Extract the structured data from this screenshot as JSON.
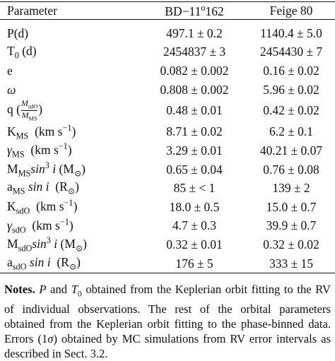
{
  "table": {
    "header": [
      [
        {
          "t": "Parameter"
        }
      ],
      [
        {
          "t": "BD−11"
        },
        {
          "t": "o",
          "s": "sup"
        },
        {
          "t": "162"
        }
      ],
      [
        {
          "t": "Feige 80"
        }
      ]
    ],
    "rows": [
      {
        "parameter": [
          {
            "t": "P(d)"
          }
        ],
        "bd": "497.1 ± 0.2",
        "feige": "1140.4 ± 5.0"
      },
      {
        "parameter": [
          {
            "t": "T"
          },
          {
            "t": "0",
            "s": "sub"
          },
          {
            "t": " (d)"
          }
        ],
        "bd": "2454837 ± 3",
        "feige": "2454430 ± 7"
      },
      {
        "parameter": [
          {
            "t": "e"
          }
        ],
        "bd": "0.082 ± 0.002",
        "feige": "0.16 ± 0.02"
      },
      {
        "parameter": [
          {
            "t": "ω",
            "s": "i"
          }
        ],
        "bd": "0.808 ± 0.002",
        "feige": "5.96 ± 0.02"
      },
      {
        "parameter": [
          {
            "t": "q ("
          },
          {
            "s": "frac",
            "num": [
              {
                "t": "M",
                "s": "i"
              },
              {
                "t": "sdO",
                "s": "sub"
              }
            ],
            "den": [
              {
                "t": "M",
                "s": "i"
              },
              {
                "t": "MS",
                "s": "sub"
              }
            ]
          },
          {
            "t": ")"
          }
        ],
        "bd": "0.48 ± 0.01",
        "feige": "0.42 ± 0.02"
      },
      {
        "parameter": [
          {
            "t": "K"
          },
          {
            "t": "MS",
            "s": "sub"
          },
          {
            "t": "  (km s"
          },
          {
            "t": "−1",
            "s": "sup"
          },
          {
            "t": ")"
          }
        ],
        "bd": "8.71 ± 0.02",
        "feige": "6.2 ± 0.1"
      },
      {
        "parameter": [
          {
            "t": "γ",
            "s": "i"
          },
          {
            "t": "MS",
            "s": "sub"
          },
          {
            "t": "  (km s"
          },
          {
            "t": "−1",
            "s": "sup"
          },
          {
            "t": ")"
          }
        ],
        "bd": "3.29 ± 0.01",
        "feige": "40.21 ± 0.07"
      },
      {
        "parameter": [
          {
            "t": "M"
          },
          {
            "t": "MS",
            "s": "sub"
          },
          {
            "t": "sin",
            "s": "i"
          },
          {
            "t": "3",
            "s": "sup"
          },
          {
            "t": " "
          },
          {
            "t": "i",
            "s": "i"
          },
          {
            "t": " (M"
          },
          {
            "t": "⊙",
            "s": "sub"
          },
          {
            "t": ")"
          }
        ],
        "bd": "0.65 ± 0.04",
        "feige": "0.76 ± 0.08"
      },
      {
        "parameter": [
          {
            "t": "a"
          },
          {
            "t": "MS",
            "s": "sub"
          },
          {
            "t": " "
          },
          {
            "t": "sin i",
            "s": "i"
          },
          {
            "t": "  (R"
          },
          {
            "t": "⊙",
            "s": "sub"
          },
          {
            "t": ")"
          }
        ],
        "bd": "85 ± < 1",
        "feige": "139 ± 2"
      },
      {
        "parameter": [
          {
            "t": "K"
          },
          {
            "t": "sdO",
            "s": "sub"
          },
          {
            "t": "  (km s"
          },
          {
            "t": "−1",
            "s": "sup"
          },
          {
            "t": ")"
          }
        ],
        "bd": "18.0 ± 0.5",
        "feige": "15.0 ± 0.7"
      },
      {
        "parameter": [
          {
            "t": "γ",
            "s": "i"
          },
          {
            "t": "sdO",
            "s": "sub"
          },
          {
            "t": "  (km s"
          },
          {
            "t": "−1",
            "s": "sup"
          },
          {
            "t": ")"
          }
        ],
        "bd": "4.7 ± 0.3",
        "feige": "39.9 ± 0.7"
      },
      {
        "parameter": [
          {
            "t": "M"
          },
          {
            "t": "sdO",
            "s": "sub"
          },
          {
            "t": "sin",
            "s": "i"
          },
          {
            "t": "3",
            "s": "sup"
          },
          {
            "t": " "
          },
          {
            "t": "i",
            "s": "i"
          },
          {
            "t": " (M"
          },
          {
            "t": "⊙",
            "s": "sub"
          },
          {
            "t": ")"
          }
        ],
        "bd": "0.32 ± 0.01",
        "feige": "0.32 ± 0.02"
      },
      {
        "parameter": [
          {
            "t": "a"
          },
          {
            "t": "sdO",
            "s": "sub"
          },
          {
            "t": " "
          },
          {
            "t": "sin i",
            "s": "i"
          },
          {
            "t": "  (R"
          },
          {
            "t": "⊙",
            "s": "sub"
          },
          {
            "t": ")"
          }
        ],
        "bd": "176 ± 5",
        "feige": "333 ± 15"
      }
    ]
  },
  "notes": [
    {
      "t": "Notes.",
      "s": "b"
    },
    {
      "t": " "
    },
    {
      "t": "P",
      "s": "i"
    },
    {
      "t": " and "
    },
    {
      "t": "T",
      "s": "i"
    },
    {
      "t": "0",
      "s": "sub"
    },
    {
      "t": " obtained from the Keplerian orbit fitting to the RV of individual observations. The rest of the orbital parameters obtained from the Keplerian orbit fitting to the phase-binned data. Errors (1"
    },
    {
      "t": "σ",
      "s": "i"
    },
    {
      "t": ") obtained by MC simulations from RV error intervals as described in Sect. 3.2."
    }
  ]
}
